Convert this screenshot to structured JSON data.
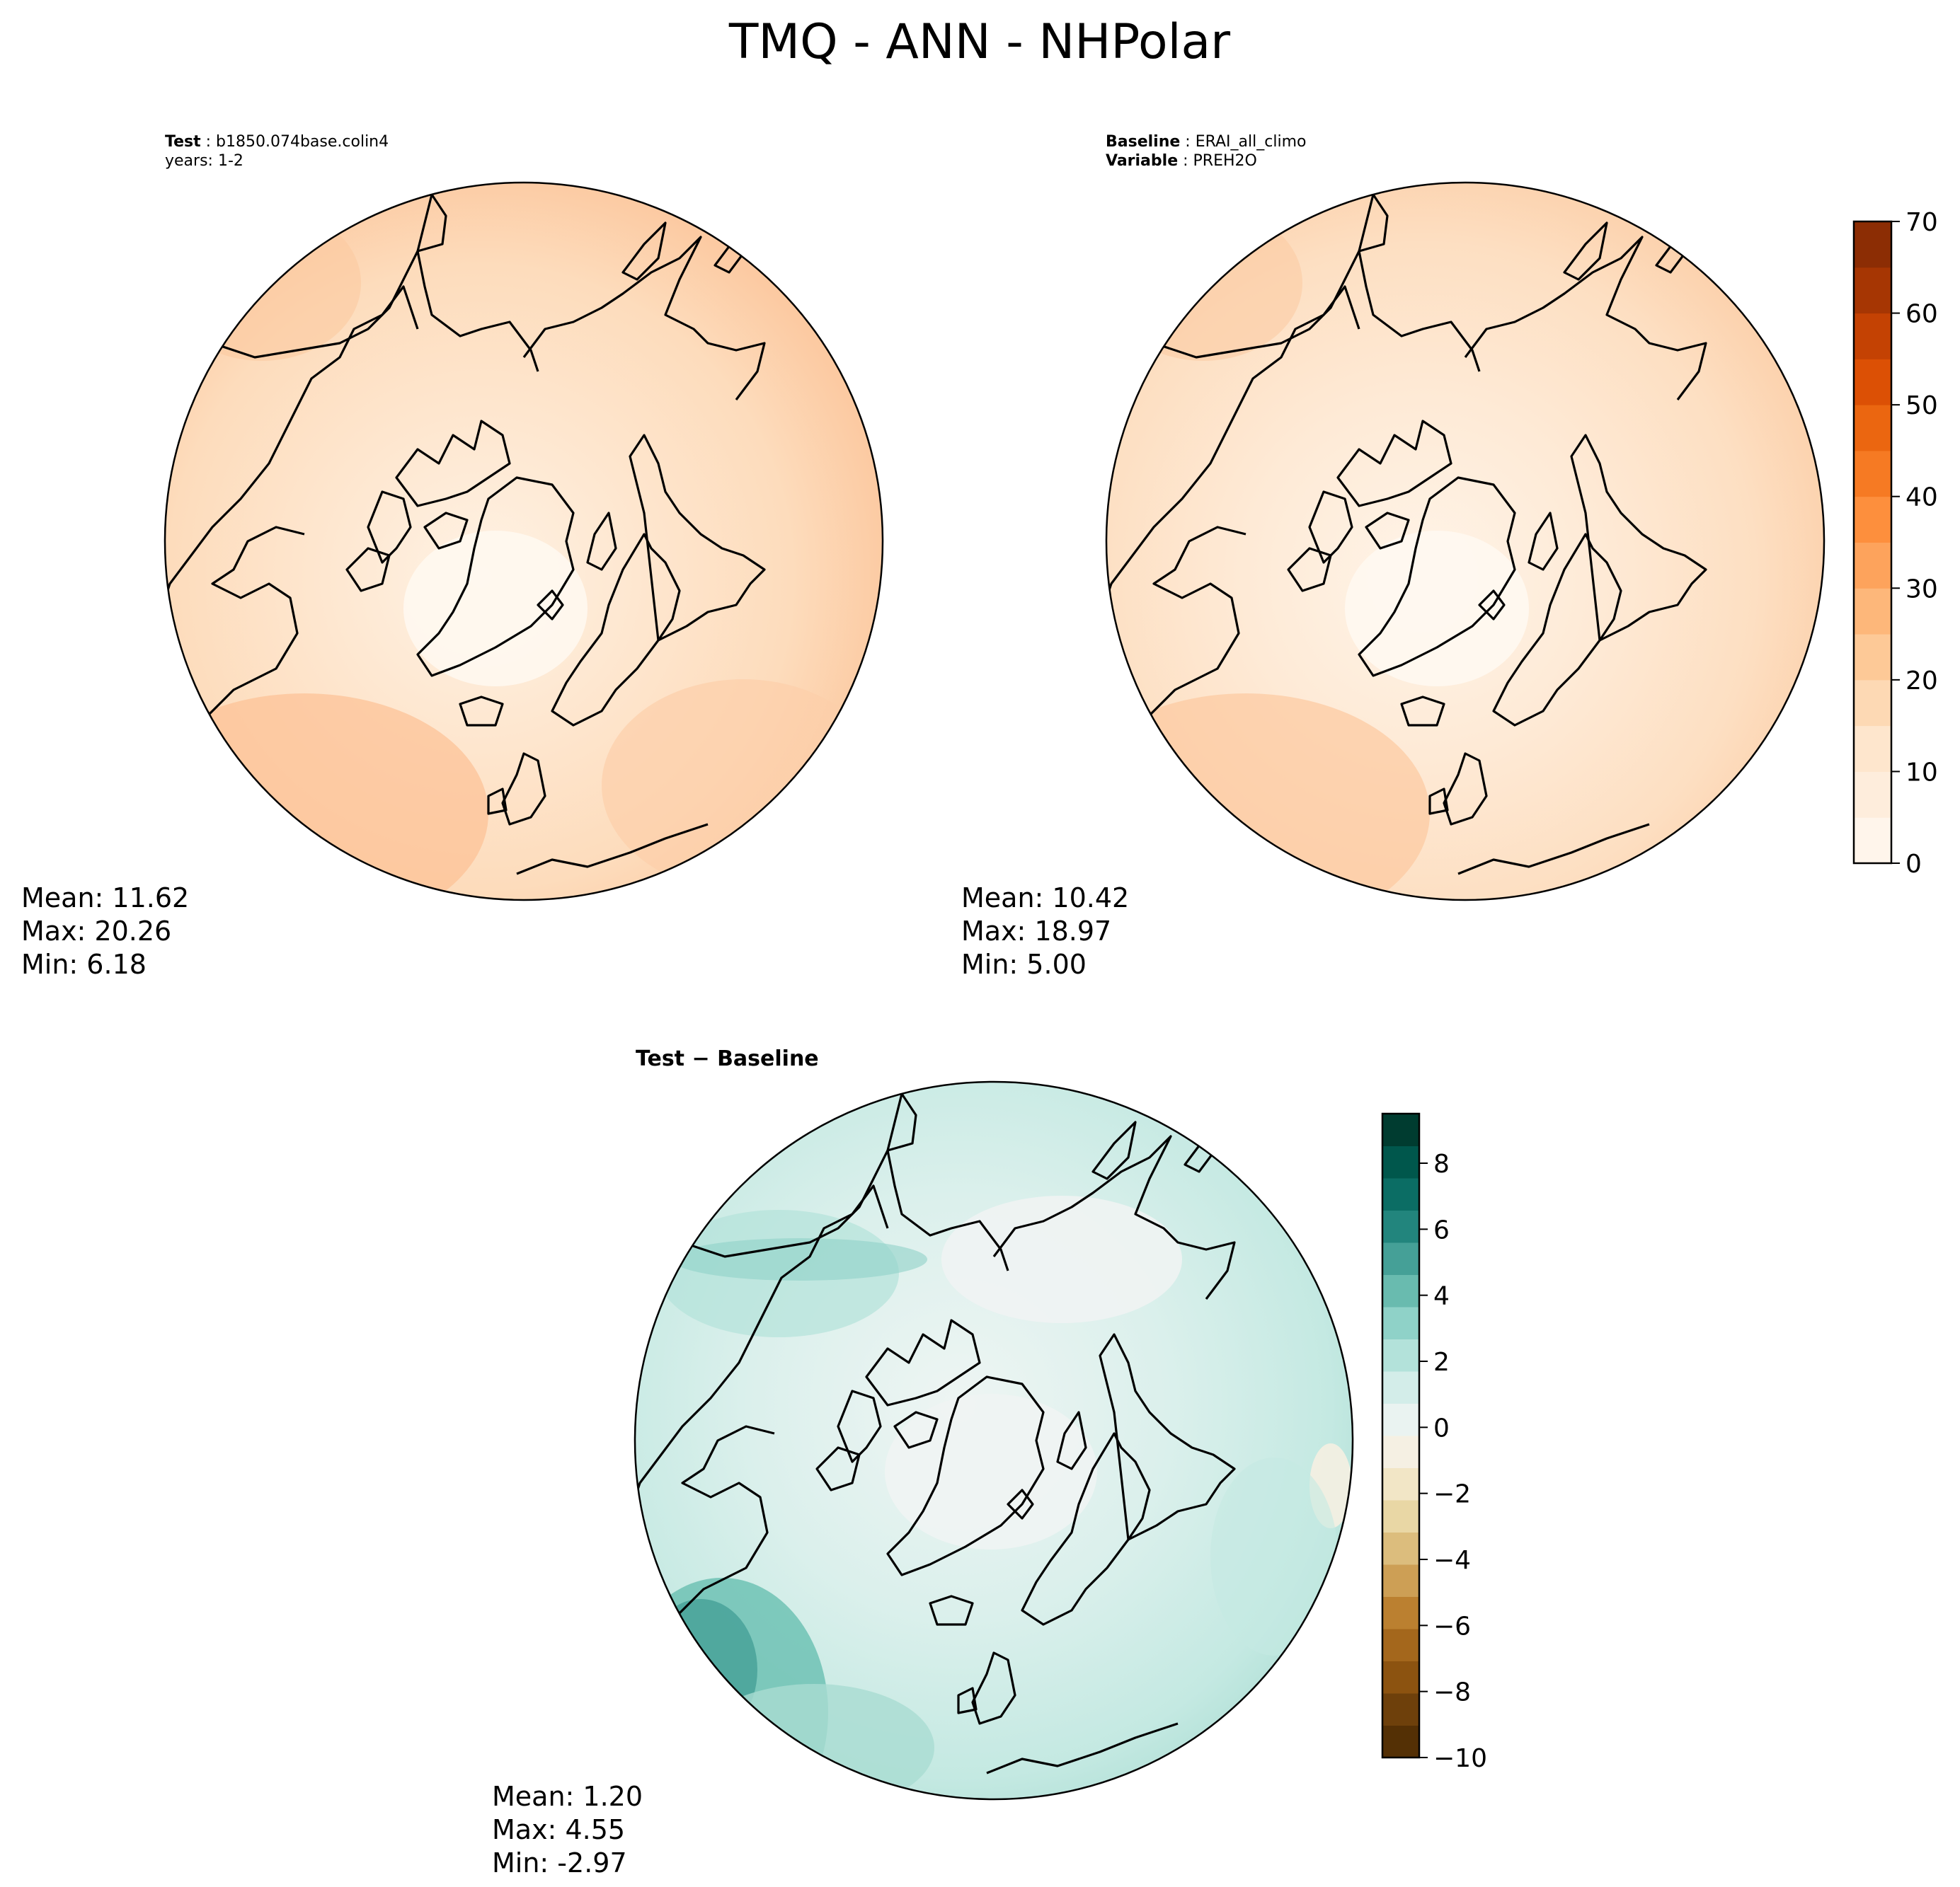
{
  "title": "TMQ - ANN - NHPolar",
  "panels": {
    "test": {
      "label_key": "Test",
      "label_value": "b1850.074base.colin4",
      "years": "years: 1-2",
      "mean": "Mean: 11.62",
      "max": "Max: 20.26",
      "min": "Min:  6.18"
    },
    "baseline": {
      "label_key": "Baseline",
      "label_value": "ERAI_all_climo",
      "var_key": "Variable",
      "var_value": "PREH2O",
      "mean": "Mean: 10.42",
      "max": "Max: 18.97",
      "min": "Min:  5.00"
    },
    "diff": {
      "title_a": "Test",
      "title_sep": " − ",
      "title_b": "Baseline",
      "mean": "Mean:  1.20",
      "max": "Max:  4.55",
      "min": "Min: -2.97"
    }
  },
  "colorbars": {
    "main": {
      "ticks": [
        "0",
        "10",
        "20",
        "30",
        "40",
        "50",
        "60",
        "70"
      ],
      "colors": [
        "#fff5eb",
        "#feeddc",
        "#fee6cd",
        "#fdd9b4",
        "#fdc997",
        "#fdb77a",
        "#fda35c",
        "#fd8f3d",
        "#f67a23",
        "#eb6610",
        "#dc5005",
        "#c44203",
        "#a63603",
        "#8c2d04"
      ]
    },
    "diff": {
      "ticks": [
        "8",
        "6",
        "4",
        "2",
        "0",
        "−2",
        "−4",
        "−6",
        "−8",
        "−10"
      ],
      "colors": [
        "#543005",
        "#6e400b",
        "#8c5310",
        "#a4671c",
        "#bb8030",
        "#cd9f55",
        "#dcbd7d",
        "#e9d7a5",
        "#f2e6c6",
        "#f5f0e3",
        "#eaf3f1",
        "#d3ede9",
        "#b3e2da",
        "#8fd2c8",
        "#69bbaf",
        "#45a097",
        "#22857d",
        "#0b6d64",
        "#00574c",
        "#003c30"
      ]
    }
  }
}
